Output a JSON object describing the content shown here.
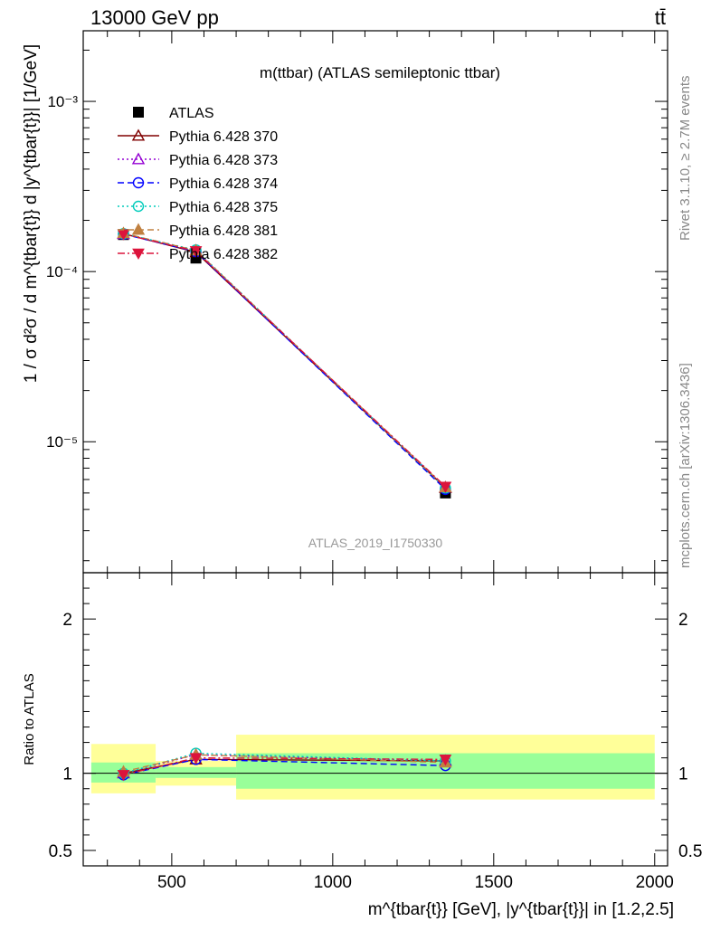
{
  "header": {
    "left": "13000 GeV pp",
    "right": "tt̄"
  },
  "side_labels": {
    "rivet": "Rivet 3.1.10, ≥ 2.7M events",
    "mcplots": "mcplots.cern.ch [arXiv:1306.3436]"
  },
  "chart_data": [
    {
      "type": "line",
      "title": "m(ttbar) (ATLAS semileptonic ttbar)",
      "watermark": "ATLAS_2019_I1750330",
      "ylabel": "1 / σ d²σ / d m^{tbar{t}} d |y^{tbar{t}}| [1/GeV]",
      "yscale": "log",
      "ylim": [
        1.7e-06,
        0.0026
      ],
      "xlim": [
        225,
        2040
      ],
      "y_ticks": [
        {
          "value": 1e-05,
          "label": "10⁻⁵"
        },
        {
          "value": 0.0001,
          "label": "10⁻⁴"
        },
        {
          "value": 0.001,
          "label": "10⁻³"
        }
      ],
      "x": [
        350,
        575,
        1350
      ],
      "series": [
        {
          "name": "ATLAS",
          "color": "#000000",
          "marker": "square-filled",
          "dash": "none",
          "values": [
            0.000165,
            0.00012,
            5e-06
          ]
        },
        {
          "name": "Pythia 6.428 370",
          "color": "#800000",
          "marker": "triangle-open",
          "dash": "solid",
          "values": [
            0.000167,
            0.00013,
            5.35e-06
          ]
        },
        {
          "name": "Pythia 6.428 373",
          "color": "#9400d3",
          "marker": "triangle-open",
          "dash": "dotted",
          "values": [
            0.000166,
            0.000133,
            5.4e-06
          ]
        },
        {
          "name": "Pythia 6.428 374",
          "color": "#0000ff",
          "marker": "circle-open",
          "dash": "dashed",
          "values": [
            0.000166,
            0.000131,
            5.25e-06
          ]
        },
        {
          "name": "Pythia 6.428 375",
          "color": "#00ccbb",
          "marker": "circle-open",
          "dash": "dotted",
          "values": [
            0.000167,
            0.000134,
            5.35e-06
          ]
        },
        {
          "name": "Pythia 6.428 381",
          "color": "#c08040",
          "marker": "triangle-filled",
          "dash": "dashed",
          "values": [
            0.000168,
            0.000133,
            5.4e-06
          ]
        },
        {
          "name": "Pythia 6.428 382",
          "color": "#dc143c",
          "marker": "triangle-down-filled",
          "dash": "dashdot",
          "values": [
            0.000166,
            0.000132,
            5.45e-06
          ]
        }
      ]
    },
    {
      "type": "line",
      "ylabel": "Ratio to ATLAS",
      "xlabel": "m^{tbar{t}} [GeV], |y^{tbar{t}}| in [1.2,2.5]",
      "ylim": [
        0.4,
        2.3
      ],
      "xlim": [
        225,
        2040
      ],
      "y_ticks": [
        {
          "value": 0.5,
          "label": "0.5"
        },
        {
          "value": 1,
          "label": "1"
        },
        {
          "value": 2,
          "label": "2"
        }
      ],
      "x_ticks": [
        {
          "value": 500,
          "label": "500"
        },
        {
          "value": 1000,
          "label": "1000"
        },
        {
          "value": 1500,
          "label": "1500"
        },
        {
          "value": 2000,
          "label": "2000"
        }
      ],
      "bands": [
        {
          "x": [
            250,
            450
          ],
          "inner": [
            0.94,
            1.07
          ],
          "outer": [
            0.87,
            1.19
          ]
        },
        {
          "x": [
            450,
            700
          ],
          "inner": [
            0.97,
            1.04
          ],
          "outer": [
            0.92,
            1.08
          ]
        },
        {
          "x": [
            700,
            2000
          ],
          "inner": [
            0.9,
            1.13
          ],
          "outer": [
            0.83,
            1.25
          ]
        }
      ],
      "x": [
        350,
        575,
        1350
      ],
      "series": [
        {
          "name": "Pythia 6.428 370",
          "values": [
            1.0,
            1.09,
            1.08
          ]
        },
        {
          "name": "Pythia 6.428 373",
          "values": [
            1.0,
            1.12,
            1.08
          ]
        },
        {
          "name": "Pythia 6.428 374",
          "values": [
            0.99,
            1.09,
            1.05
          ]
        },
        {
          "name": "Pythia 6.428 375",
          "values": [
            1.0,
            1.13,
            1.08
          ]
        },
        {
          "name": "Pythia 6.428 381",
          "values": [
            1.01,
            1.12,
            1.07
          ]
        },
        {
          "name": "Pythia 6.428 382",
          "values": [
            0.99,
            1.1,
            1.09
          ]
        }
      ]
    }
  ]
}
